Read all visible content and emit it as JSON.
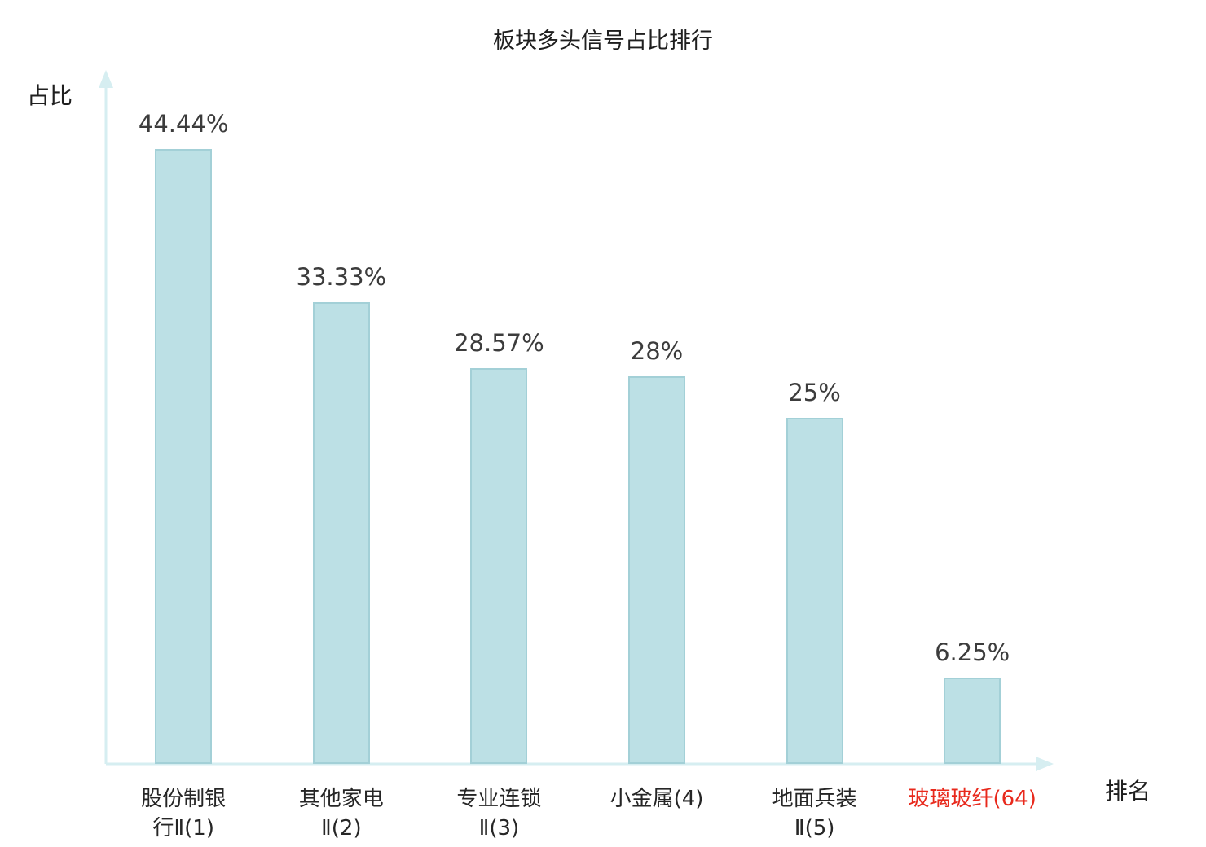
{
  "chart_data": {
    "type": "bar",
    "title": "板块多头信号占比排行",
    "ylabel": "占比",
    "xlabel": "排名",
    "ylim": [
      0,
      50
    ],
    "grid": false,
    "legend": "none",
    "bar_color": "#bce0e5",
    "bar_border_color": "#a3d0d7",
    "axis_color": "#d6eef1",
    "label_color": "#3c3c3c",
    "highlight_color": "#e8291c",
    "categories": [
      "股份制银行Ⅱ(1)",
      "其他家电Ⅱ(2)",
      "专业连锁Ⅱ(3)",
      "小金属(4)",
      "地面兵装Ⅱ(5)",
      "玻璃玻纤(64)"
    ],
    "series": [
      {
        "category_lines": [
          "股份制银",
          "行Ⅱ(1)"
        ],
        "value": 44.44,
        "value_label": "44.44%",
        "highlight": false
      },
      {
        "category_lines": [
          "其他家电",
          "Ⅱ(2)"
        ],
        "value": 33.33,
        "value_label": "33.33%",
        "highlight": false
      },
      {
        "category_lines": [
          "专业连锁",
          "Ⅱ(3)"
        ],
        "value": 28.57,
        "value_label": "28.57%",
        "highlight": false
      },
      {
        "category_lines": [
          "小金属(4)"
        ],
        "value": 28,
        "value_label": "28%",
        "highlight": false
      },
      {
        "category_lines": [
          "地面兵装",
          "Ⅱ(5)"
        ],
        "value": 25,
        "value_label": "25%",
        "highlight": false
      },
      {
        "category_lines": [
          "玻璃玻纤(64)"
        ],
        "value": 6.25,
        "value_label": "6.25%",
        "highlight": true
      }
    ]
  }
}
